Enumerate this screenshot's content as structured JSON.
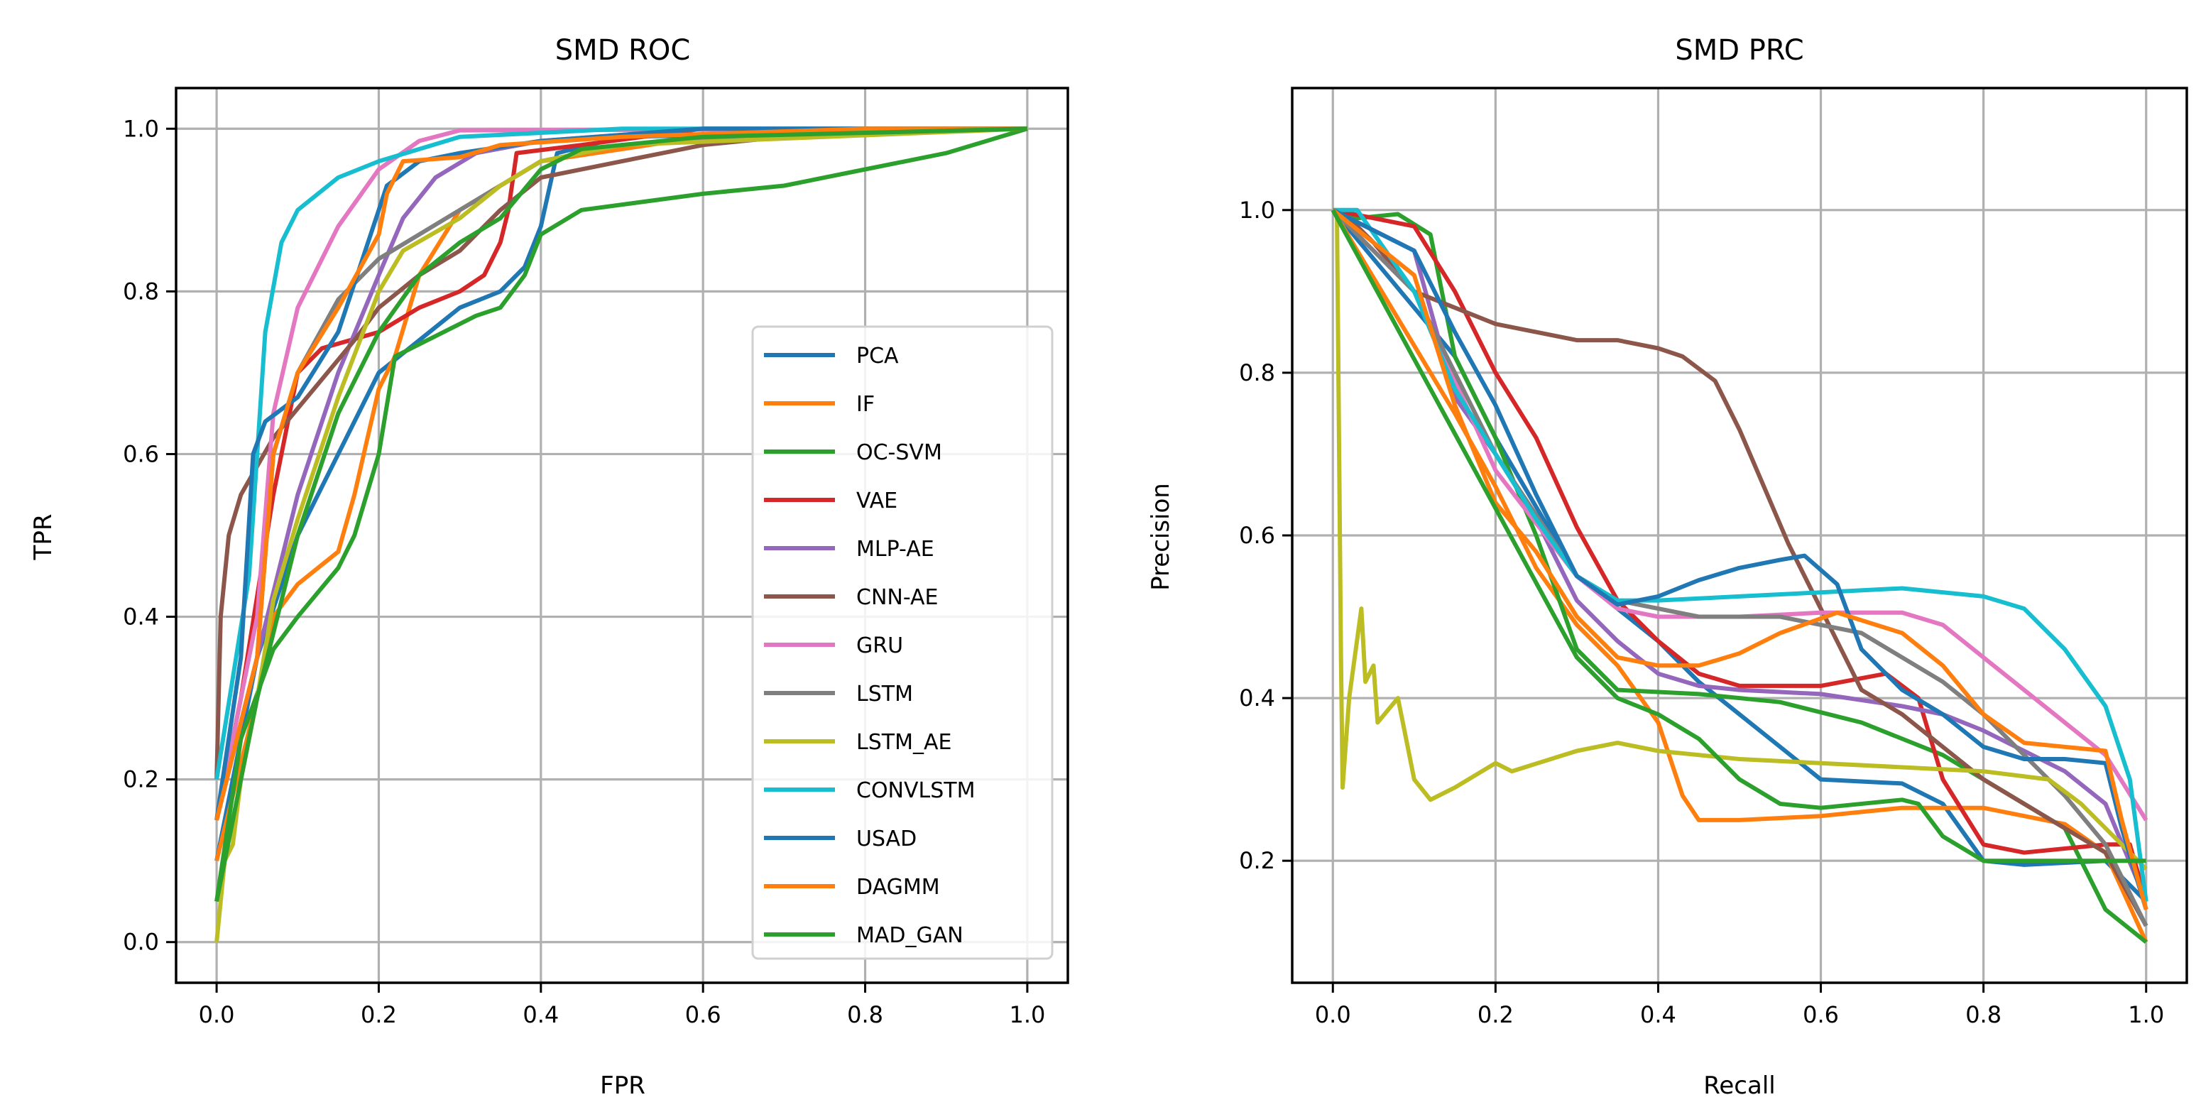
{
  "chart_data": [
    {
      "type": "line",
      "title": "SMD ROC",
      "xlabel": "FPR",
      "ylabel": "TPR",
      "xlim": [
        -0.05,
        1.05
      ],
      "ylim": [
        -0.05,
        1.05
      ],
      "xticks": [
        "0.0",
        "0.2",
        "0.4",
        "0.6",
        "0.8",
        "1.0"
      ],
      "yticks": [
        "0.0",
        "0.2",
        "0.4",
        "0.6",
        "0.8",
        "1.0"
      ],
      "grid": true,
      "legend": "center-right",
      "series": [
        {
          "name": "PCA",
          "color": "#1f77b4",
          "x": [
            0,
            0.05,
            0.1,
            0.13,
            0.2,
            0.3,
            0.35,
            0.38,
            0.4,
            0.42,
            0.5,
            1
          ],
          "y": [
            0.1,
            0.35,
            0.5,
            0.56,
            0.7,
            0.78,
            0.8,
            0.83,
            0.88,
            0.97,
            0.99,
            1
          ]
        },
        {
          "name": "IF",
          "color": "#ff7f0e",
          "x": [
            0,
            0.05,
            0.07,
            0.1,
            0.15,
            0.17,
            0.2,
            0.22,
            0.25,
            0.3,
            0.35,
            0.4,
            0.6,
            1
          ],
          "y": [
            0.1,
            0.3,
            0.4,
            0.44,
            0.48,
            0.55,
            0.68,
            0.72,
            0.82,
            0.9,
            0.93,
            0.96,
            0.99,
            1
          ]
        },
        {
          "name": "OC-SVM",
          "color": "#2ca02c",
          "x": [
            0,
            0.03,
            0.07,
            0.1,
            0.15,
            0.17,
            0.2,
            0.22,
            0.3,
            0.32,
            0.35,
            0.38,
            0.4,
            0.45,
            0.6,
            0.7,
            0.8,
            0.9,
            1
          ],
          "y": [
            0.05,
            0.25,
            0.36,
            0.4,
            0.46,
            0.5,
            0.6,
            0.72,
            0.76,
            0.77,
            0.78,
            0.82,
            0.87,
            0.9,
            0.92,
            0.93,
            0.95,
            0.97,
            1
          ]
        },
        {
          "name": "VAE",
          "color": "#d62728",
          "x": [
            0,
            0.03,
            0.07,
            0.1,
            0.13,
            0.2,
            0.25,
            0.3,
            0.33,
            0.35,
            0.36,
            0.37,
            0.45,
            0.6,
            1
          ],
          "y": [
            0.15,
            0.3,
            0.55,
            0.7,
            0.73,
            0.75,
            0.78,
            0.8,
            0.82,
            0.86,
            0.9,
            0.97,
            0.98,
            1,
            1
          ]
        },
        {
          "name": "MLP-AE",
          "color": "#9467bd",
          "x": [
            0,
            0.05,
            0.1,
            0.15,
            0.2,
            0.23,
            0.27,
            0.32,
            0.4,
            0.6,
            1
          ],
          "y": [
            0.15,
            0.35,
            0.55,
            0.7,
            0.82,
            0.89,
            0.94,
            0.97,
            0.985,
            1,
            1
          ]
        },
        {
          "name": "CNN-AE",
          "color": "#8c564b",
          "x": [
            0,
            0.005,
            0.015,
            0.03,
            0.07,
            0.12,
            0.17,
            0.2,
            0.25,
            0.3,
            0.35,
            0.4,
            0.5,
            0.6,
            0.7,
            0.8,
            1
          ],
          "y": [
            0.2,
            0.4,
            0.5,
            0.55,
            0.62,
            0.68,
            0.74,
            0.78,
            0.82,
            0.85,
            0.9,
            0.94,
            0.96,
            0.98,
            0.99,
            1,
            1
          ]
        },
        {
          "name": "GRU",
          "color": "#e377c2",
          "x": [
            0,
            0.05,
            0.07,
            0.1,
            0.15,
            0.2,
            0.25,
            0.3,
            1
          ],
          "y": [
            0.15,
            0.4,
            0.65,
            0.78,
            0.88,
            0.95,
            0.985,
            0.998,
            1
          ]
        },
        {
          "name": "LSTM",
          "color": "#7f7f7f",
          "x": [
            0,
            0.05,
            0.07,
            0.1,
            0.15,
            0.2,
            0.25,
            0.3,
            0.35,
            0.4,
            0.5,
            0.7,
            1
          ],
          "y": [
            0.15,
            0.35,
            0.6,
            0.7,
            0.79,
            0.84,
            0.87,
            0.9,
            0.93,
            0.96,
            0.98,
            0.995,
            1
          ]
        },
        {
          "name": "LSTM_AE",
          "color": "#bcbd22",
          "x": [
            0,
            0.01,
            0.02,
            0.03,
            0.05,
            0.07,
            0.1,
            0.15,
            0.2,
            0.23,
            0.3,
            0.35,
            0.4,
            0.5,
            1
          ],
          "y": [
            0,
            0.1,
            0.12,
            0.2,
            0.3,
            0.42,
            0.52,
            0.67,
            0.8,
            0.85,
            0.89,
            0.93,
            0.96,
            0.98,
            1
          ]
        },
        {
          "name": "CONVLSTM",
          "color": "#17becf",
          "x": [
            0,
            0.04,
            0.06,
            0.08,
            0.1,
            0.15,
            0.2,
            0.3,
            0.5,
            1
          ],
          "y": [
            0.2,
            0.45,
            0.75,
            0.86,
            0.9,
            0.94,
            0.96,
            0.99,
            1,
            1
          ]
        },
        {
          "name": "USAD",
          "color": "#1f77b4",
          "x": [
            0,
            0.03,
            0.045,
            0.06,
            0.1,
            0.15,
            0.2,
            0.21,
            0.25,
            0.3,
            0.4,
            0.6,
            1
          ],
          "y": [
            0.15,
            0.35,
            0.6,
            0.64,
            0.67,
            0.75,
            0.9,
            0.93,
            0.96,
            0.97,
            0.985,
            1,
            1
          ]
        },
        {
          "name": "DAGMM",
          "color": "#ff7f0e",
          "x": [
            0,
            0.05,
            0.07,
            0.1,
            0.15,
            0.2,
            0.21,
            0.23,
            0.3,
            0.35,
            0.5,
            0.8,
            1
          ],
          "y": [
            0.15,
            0.35,
            0.6,
            0.7,
            0.78,
            0.87,
            0.92,
            0.96,
            0.965,
            0.98,
            0.99,
            1,
            1
          ]
        },
        {
          "name": "MAD_GAN",
          "color": "#2ca02c",
          "x": [
            0,
            0.05,
            0.1,
            0.15,
            0.2,
            0.25,
            0.3,
            0.35,
            0.4,
            0.45,
            0.6,
            1
          ],
          "y": [
            0.05,
            0.3,
            0.5,
            0.65,
            0.75,
            0.82,
            0.86,
            0.89,
            0.95,
            0.975,
            0.99,
            1
          ]
        }
      ]
    },
    {
      "type": "line",
      "title": "SMD PRC",
      "xlabel": "Recall",
      "ylabel": "Precision",
      "xlim": [
        -0.05,
        1.05
      ],
      "ylim": [
        0.05,
        1.15
      ],
      "xticks": [
        "0.0",
        "0.2",
        "0.4",
        "0.6",
        "0.8",
        "1.0"
      ],
      "yticks": [
        "0.2",
        "0.4",
        "0.6",
        "0.8",
        "1.0"
      ],
      "grid": true,
      "series": [
        {
          "name": "PCA",
          "color": "#1f77b4",
          "x": [
            0,
            0.15,
            0.2,
            0.3,
            0.4,
            0.45,
            0.5,
            0.55,
            0.6,
            0.7,
            0.75,
            0.8,
            0.85,
            0.95,
            1
          ],
          "y": [
            1,
            0.82,
            0.72,
            0.55,
            0.47,
            0.42,
            0.38,
            0.34,
            0.3,
            0.295,
            0.27,
            0.2,
            0.195,
            0.2,
            0.15
          ]
        },
        {
          "name": "IF",
          "color": "#ff7f0e",
          "x": [
            0,
            0.15,
            0.2,
            0.25,
            0.3,
            0.35,
            0.4,
            0.43,
            0.45,
            0.5,
            0.6,
            0.7,
            0.8,
            0.9,
            0.95,
            1
          ],
          "y": [
            1,
            0.75,
            0.66,
            0.56,
            0.49,
            0.44,
            0.37,
            0.28,
            0.25,
            0.25,
            0.255,
            0.265,
            0.265,
            0.245,
            0.21,
            0.1
          ]
        },
        {
          "name": "OC-SVM",
          "color": "#2ca02c",
          "x": [
            0,
            0.03,
            0.08,
            0.12,
            0.15,
            0.2,
            0.25,
            0.3,
            0.35,
            0.45,
            0.55,
            0.65,
            0.7,
            0.75,
            0.8,
            0.85,
            0.9,
            0.92,
            0.95,
            1
          ],
          "y": [
            1,
            0.99,
            0.995,
            0.97,
            0.82,
            0.72,
            0.6,
            0.46,
            0.41,
            0.405,
            0.395,
            0.37,
            0.35,
            0.33,
            0.3,
            0.27,
            0.24,
            0.2,
            0.14,
            0.1
          ]
        },
        {
          "name": "VAE",
          "color": "#d62728",
          "x": [
            0,
            0.1,
            0.15,
            0.2,
            0.25,
            0.3,
            0.35,
            0.4,
            0.45,
            0.5,
            0.6,
            0.68,
            0.72,
            0.75,
            0.8,
            0.85,
            0.95,
            0.98,
            1
          ],
          "y": [
            1,
            0.98,
            0.9,
            0.8,
            0.72,
            0.61,
            0.52,
            0.47,
            0.43,
            0.415,
            0.415,
            0.43,
            0.4,
            0.3,
            0.22,
            0.21,
            0.22,
            0.22,
            0.15
          ]
        },
        {
          "name": "MLP-AE",
          "color": "#9467bd",
          "x": [
            0,
            0.1,
            0.15,
            0.2,
            0.25,
            0.3,
            0.35,
            0.4,
            0.45,
            0.5,
            0.6,
            0.7,
            0.75,
            0.8,
            0.9,
            0.95,
            1
          ],
          "y": [
            1,
            0.95,
            0.77,
            0.7,
            0.62,
            0.52,
            0.47,
            0.43,
            0.415,
            0.41,
            0.405,
            0.39,
            0.38,
            0.36,
            0.31,
            0.27,
            0.15
          ]
        },
        {
          "name": "CNN-AE",
          "color": "#8c564b",
          "x": [
            0,
            0.02,
            0.05,
            0.1,
            0.15,
            0.2,
            0.3,
            0.35,
            0.4,
            0.43,
            0.47,
            0.5,
            0.53,
            0.56,
            0.6,
            0.63,
            0.65,
            0.7,
            0.75,
            0.8,
            0.85,
            0.9,
            0.95,
            1
          ],
          "y": [
            1,
            0.99,
            0.96,
            0.9,
            0.88,
            0.86,
            0.84,
            0.84,
            0.83,
            0.82,
            0.79,
            0.73,
            0.66,
            0.59,
            0.51,
            0.45,
            0.41,
            0.38,
            0.34,
            0.3,
            0.27,
            0.24,
            0.21,
            0.12
          ]
        },
        {
          "name": "GRU",
          "color": "#e377c2",
          "x": [
            0,
            0.1,
            0.2,
            0.3,
            0.35,
            0.4,
            0.5,
            0.6,
            0.7,
            0.75,
            0.8,
            0.85,
            0.9,
            0.95,
            1
          ],
          "y": [
            1,
            0.9,
            0.68,
            0.55,
            0.51,
            0.5,
            0.5,
            0.505,
            0.505,
            0.49,
            0.45,
            0.41,
            0.37,
            0.33,
            0.25
          ]
        },
        {
          "name": "LSTM",
          "color": "#7f7f7f",
          "x": [
            0,
            0.1,
            0.2,
            0.3,
            0.35,
            0.45,
            0.55,
            0.65,
            0.75,
            0.8,
            0.85,
            0.9,
            0.95,
            1
          ],
          "y": [
            1,
            0.9,
            0.7,
            0.55,
            0.52,
            0.5,
            0.5,
            0.48,
            0.42,
            0.38,
            0.33,
            0.28,
            0.22,
            0.12
          ]
        },
        {
          "name": "LSTM_AE",
          "color": "#bcbd22",
          "x": [
            0,
            0.005,
            0.01,
            0.012,
            0.02,
            0.035,
            0.04,
            0.05,
            0.055,
            0.08,
            0.09,
            0.1,
            0.12,
            0.15,
            0.2,
            0.22,
            0.3,
            0.35,
            0.4,
            0.5,
            0.6,
            0.7,
            0.8,
            0.88,
            0.92,
            0.97,
            1
          ],
          "y": [
            1,
            1,
            0.45,
            0.29,
            0.4,
            0.51,
            0.42,
            0.44,
            0.37,
            0.4,
            0.35,
            0.3,
            0.275,
            0.29,
            0.32,
            0.31,
            0.335,
            0.345,
            0.335,
            0.325,
            0.32,
            0.315,
            0.31,
            0.3,
            0.27,
            0.22,
            0.19
          ]
        },
        {
          "name": "CONVLSTM",
          "color": "#17becf",
          "x": [
            0,
            0.03,
            0.1,
            0.15,
            0.2,
            0.25,
            0.3,
            0.35,
            0.4,
            0.5,
            0.6,
            0.7,
            0.8,
            0.85,
            0.9,
            0.95,
            0.98,
            1
          ],
          "y": [
            1,
            1,
            0.9,
            0.78,
            0.7,
            0.62,
            0.55,
            0.52,
            0.52,
            0.525,
            0.53,
            0.535,
            0.525,
            0.51,
            0.46,
            0.39,
            0.3,
            0.15
          ]
        },
        {
          "name": "USAD",
          "color": "#1f77b4",
          "x": [
            0,
            0.1,
            0.15,
            0.2,
            0.25,
            0.3,
            0.35,
            0.4,
            0.45,
            0.5,
            0.55,
            0.58,
            0.62,
            0.65,
            0.7,
            0.75,
            0.8,
            0.85,
            0.9,
            0.95,
            0.97,
            1
          ],
          "y": [
            1,
            0.95,
            0.85,
            0.76,
            0.65,
            0.55,
            0.515,
            0.525,
            0.545,
            0.56,
            0.57,
            0.575,
            0.54,
            0.46,
            0.41,
            0.38,
            0.34,
            0.325,
            0.325,
            0.32,
            0.24,
            0.14
          ]
        },
        {
          "name": "DAGMM",
          "color": "#ff7f0e",
          "x": [
            0,
            0.1,
            0.15,
            0.2,
            0.25,
            0.3,
            0.35,
            0.4,
            0.45,
            0.5,
            0.55,
            0.62,
            0.7,
            0.75,
            0.8,
            0.85,
            0.9,
            0.95,
            0.97,
            1
          ],
          "y": [
            1,
            0.92,
            0.76,
            0.64,
            0.58,
            0.5,
            0.45,
            0.44,
            0.44,
            0.455,
            0.48,
            0.505,
            0.48,
            0.44,
            0.38,
            0.345,
            0.34,
            0.335,
            0.25,
            0.14
          ]
        },
        {
          "name": "MAD_GAN",
          "color": "#2ca02c",
          "x": [
            0,
            0.3,
            0.35,
            0.4,
            0.45,
            0.5,
            0.55,
            0.6,
            0.7,
            0.72,
            0.75,
            0.8,
            0.9,
            0.95,
            1
          ],
          "y": [
            1,
            0.45,
            0.4,
            0.38,
            0.35,
            0.3,
            0.27,
            0.265,
            0.275,
            0.27,
            0.23,
            0.2,
            0.2,
            0.2,
            0.2
          ]
        }
      ]
    }
  ]
}
